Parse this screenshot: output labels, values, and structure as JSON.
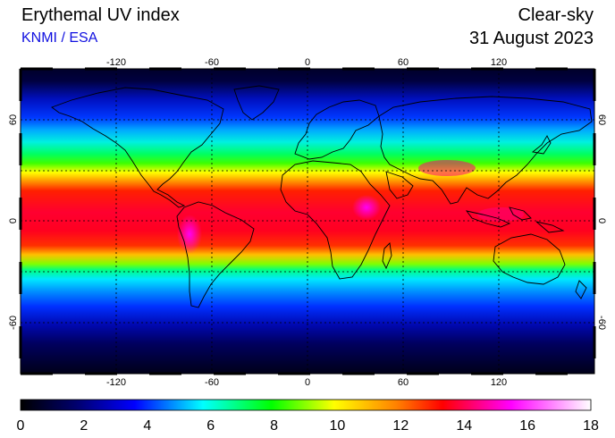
{
  "header": {
    "title": "Erythemal UV index",
    "subtitle": "KNMI / ESA",
    "mode": "Clear-sky",
    "date": "31 August 2023"
  },
  "map": {
    "projection": "equirectangular",
    "lon_range": [
      -180,
      180
    ],
    "lat_range": [
      -90,
      90
    ],
    "gridlines": "dotted",
    "lon_ticks": [
      "-120",
      "-60",
      "0",
      "60",
      "120"
    ],
    "lat_ticks": [
      "60",
      "0",
      "-60"
    ],
    "coastlines": true
  },
  "colorbar": {
    "min": 0,
    "max": 18,
    "tick_labels": [
      "0",
      "2",
      "4",
      "6",
      "8",
      "10",
      "12",
      "14",
      "16",
      "18"
    ],
    "stops": [
      "#000000",
      "#0000ff",
      "#00ffff",
      "#00ff00",
      "#ffff00",
      "#ff0000",
      "#ff00ff",
      "#ffffff"
    ]
  }
}
